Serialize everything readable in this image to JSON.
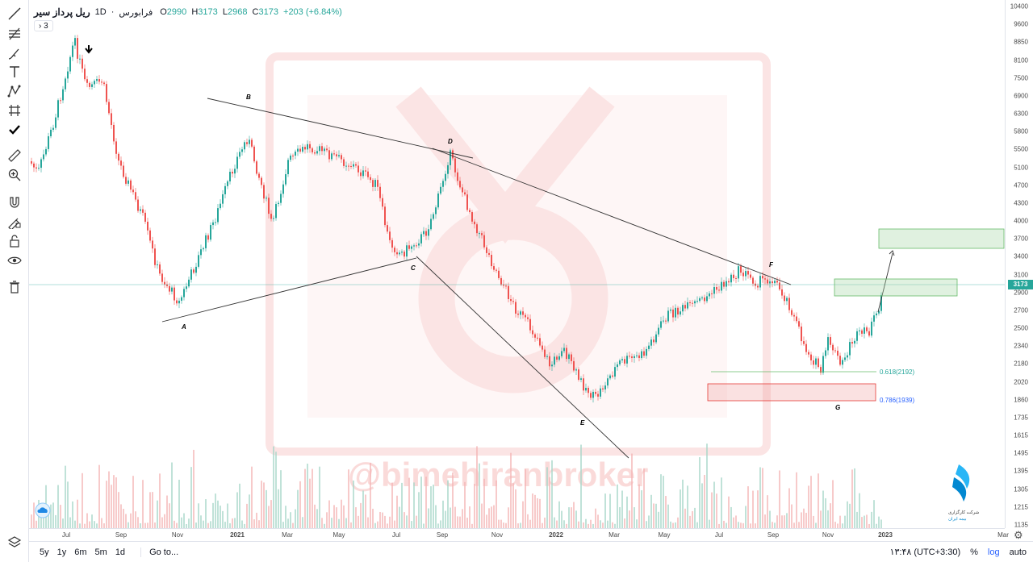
{
  "legend": {
    "symbol": "فرابورس",
    "separator": "·",
    "interval": "1D",
    "title": "ریل پرداز سیر",
    "o_label": "O",
    "o_val": "2990",
    "h_label": "H",
    "h_val": "3173",
    "l_label": "L",
    "l_val": "2968",
    "c_label": "C",
    "c_val": "3173",
    "change": "+203 (+6.84%)",
    "collapse_count": "3"
  },
  "price_axis": {
    "ticks": [
      "10400",
      "9600",
      "8850",
      "8100",
      "7500",
      "6900",
      "6300",
      "5800",
      "5500",
      "5100",
      "4700",
      "4300",
      "4000",
      "3700",
      "3400",
      "3100",
      "2900",
      "2700",
      "2500",
      "2340",
      "2180",
      "2020",
      "1860",
      "1735",
      "1615",
      "1495",
      "1395",
      "1305",
      "1215",
      "1135"
    ],
    "current_price": "3173"
  },
  "time_axis": {
    "ticks": [
      "Jul",
      "Sep",
      "Nov",
      "2021",
      "Mar",
      "May",
      "Jul",
      "Sep",
      "Nov",
      "2022",
      "Mar",
      "May",
      "Jul",
      "Sep",
      "Nov",
      "2023",
      "Mar"
    ]
  },
  "annotations": {
    "points": [
      "A",
      "B",
      "C",
      "D",
      "E",
      "F",
      "G"
    ],
    "fib1": "0.618(2192)",
    "fib2": "0.786(1939)",
    "watermark": "@bimehiranbroker",
    "logo_text1": "شرکت کارگزاری",
    "logo_text2": "بیمه ایران"
  },
  "bottom_bar": {
    "ranges": [
      "5y",
      "1y",
      "6m",
      "5m",
      "1d"
    ],
    "goto": "Go to...",
    "time": "۱۳:۴۸ (UTC+3:30)",
    "percent": "%",
    "log": "log",
    "auto": "auto"
  },
  "tools": [
    "trend-line-icon",
    "fib-tool-icon",
    "brush-icon",
    "text-icon",
    "pattern-icon",
    "prediction-icon",
    "check-icon",
    "ruler-icon",
    "zoom-icon",
    "magnet-icon",
    "lock-drawing-icon",
    "lock-icon",
    "eye-icon",
    "trash-icon"
  ],
  "colors": {
    "up": "#26a69a",
    "down": "#ef5350",
    "accent": "#2962ff"
  }
}
